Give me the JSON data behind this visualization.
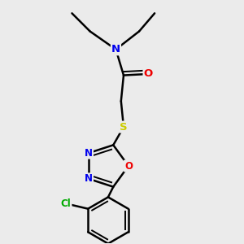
{
  "bg_color": "#ebebeb",
  "atom_colors": {
    "C": "#000000",
    "N": "#0000ee",
    "O": "#ee0000",
    "S": "#cccc00",
    "Cl": "#00aa00",
    "H": "#000000"
  },
  "bond_color": "#000000",
  "figsize": [
    3.0,
    3.0
  ],
  "dpi": 100
}
